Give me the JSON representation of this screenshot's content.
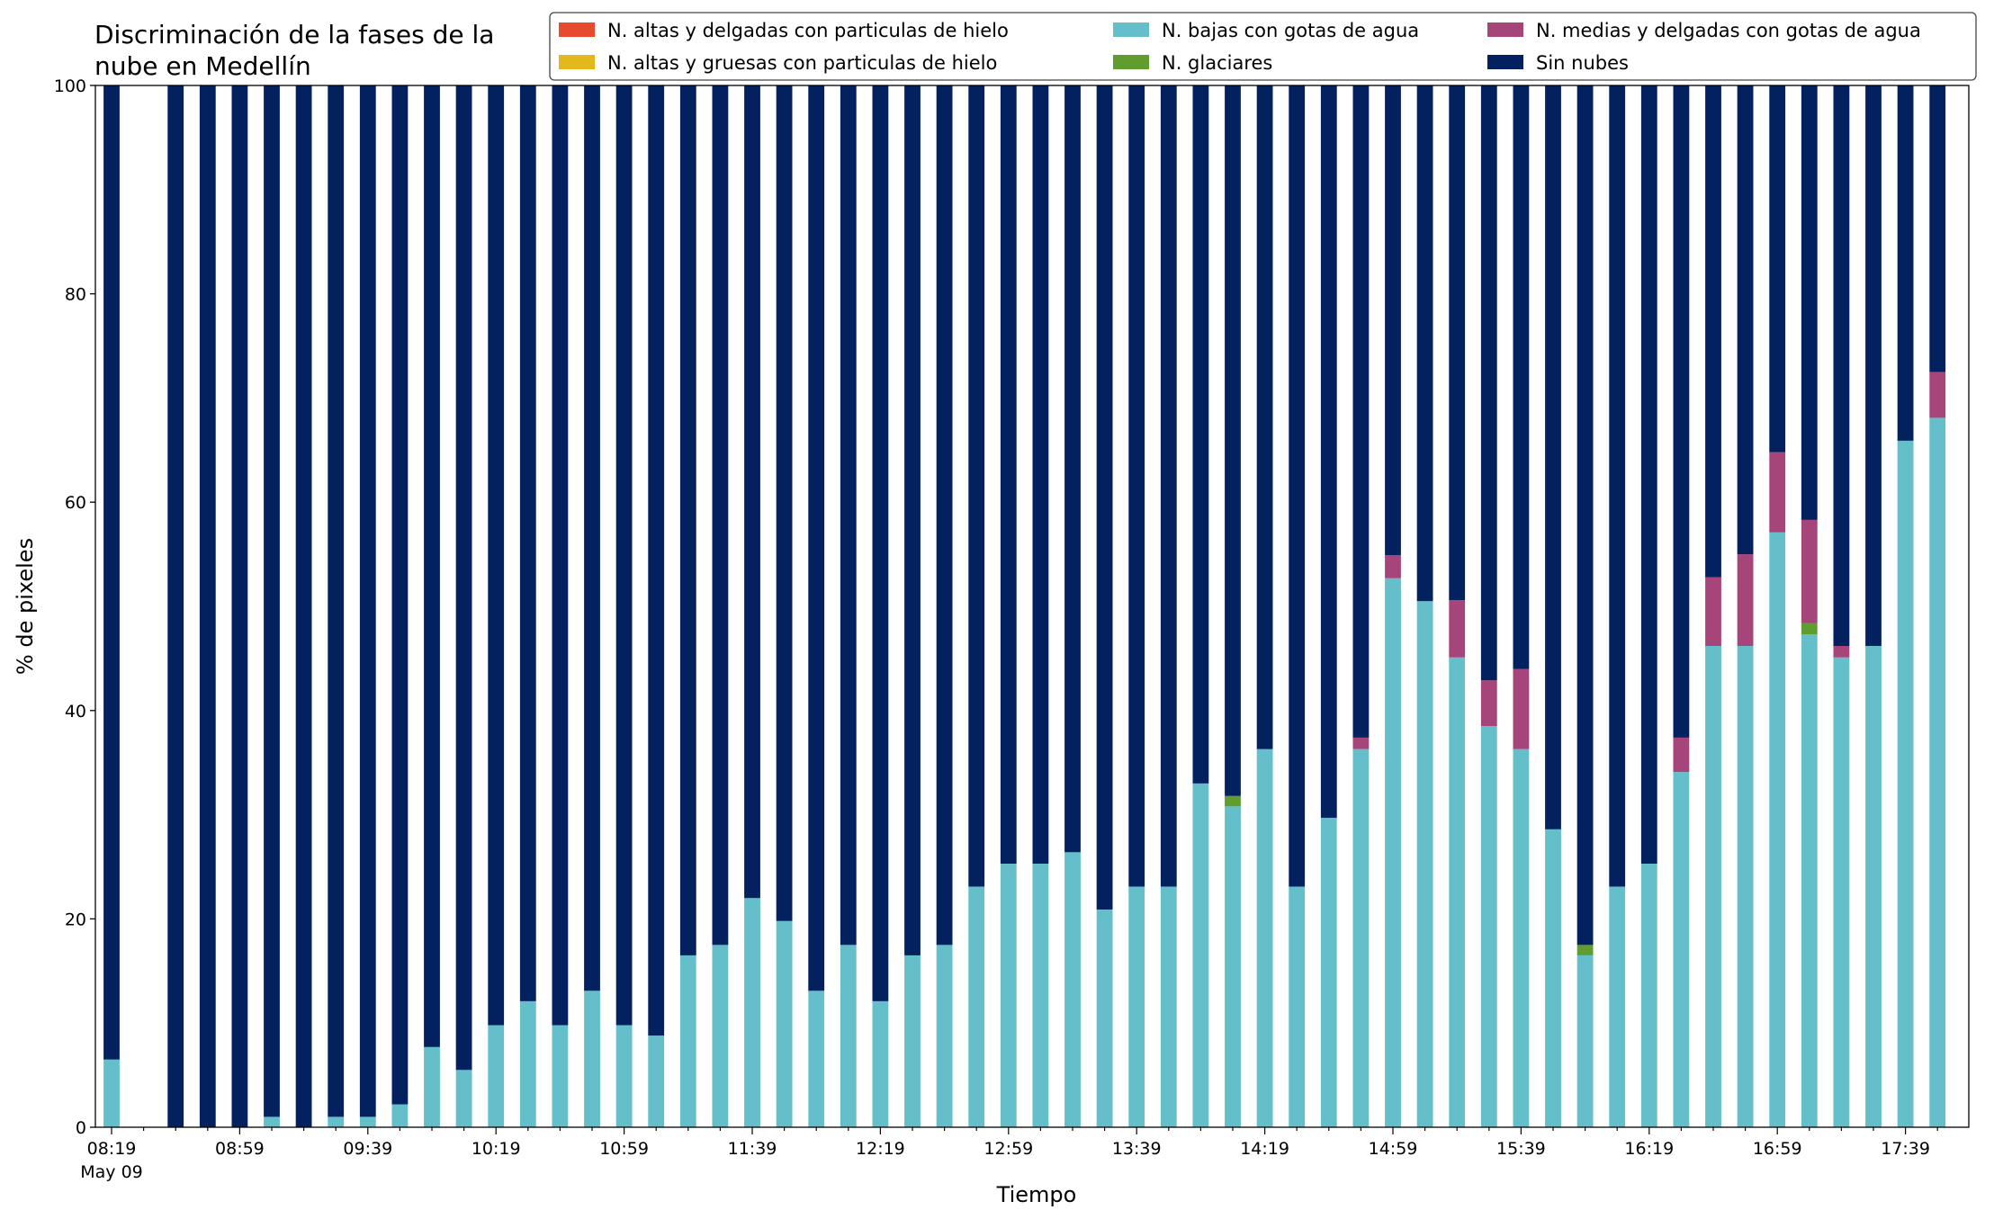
{
  "chart_data": {
    "type": "bar",
    "stacked": true,
    "title_lines": [
      "Discriminación de la fases de la",
      "nube en Medellín"
    ],
    "xlabel": "Tiempo",
    "ylabel": "% de pixeles",
    "ylim": [
      0,
      100
    ],
    "yticks": [
      0,
      20,
      40,
      60,
      80,
      100
    ],
    "grid": false,
    "legend_position": "top-right",
    "x_time": {
      "start": "08:19",
      "step_minutes": 10,
      "count": 58
    },
    "xtick_labels": [
      "08:19",
      "08:59",
      "09:39",
      "10:19",
      "10:59",
      "11:39",
      "12:19",
      "12:59",
      "13:39",
      "14:19",
      "14:59",
      "15:39",
      "16:19",
      "16:59",
      "17:39"
    ],
    "xtick_sublabel": "May 09",
    "series": [
      {
        "name": "N. altas y delgadas con particulas de hielo",
        "color": "#e84a2e"
      },
      {
        "name": "N. altas y gruesas con particulas de hielo",
        "color": "#e3b81c"
      },
      {
        "name": "N. bajas con gotas de agua",
        "color": "#64bfca"
      },
      {
        "name": "N. glaciares",
        "color": "#5f9e2e"
      },
      {
        "name": "N. medias y delgadas con gotas de agua",
        "color": "#a64579"
      },
      {
        "name": "Sin nubes",
        "color": "#03205f"
      }
    ],
    "stack_order": [
      "N. bajas con gotas de agua",
      "N. glaciares",
      "N. medias y delgadas con gotas de agua",
      "Sin nubes"
    ],
    "bars": [
      {
        "time": "08:19",
        "bajas": 6.5,
        "glaciares": 0,
        "medias": 0,
        "sin": 93.5
      },
      {
        "time": "08:29",
        "missing": true
      },
      {
        "time": "08:39",
        "bajas": 0,
        "glaciares": 0,
        "medias": 0,
        "sin": 100
      },
      {
        "time": "08:49",
        "bajas": 0,
        "glaciares": 0,
        "medias": 0,
        "sin": 100
      },
      {
        "time": "08:59",
        "bajas": 0,
        "glaciares": 0,
        "medias": 0,
        "sin": 100
      },
      {
        "time": "09:09",
        "bajas": 1,
        "glaciares": 0,
        "medias": 0,
        "sin": 99
      },
      {
        "time": "09:19",
        "bajas": 0,
        "glaciares": 0,
        "medias": 0,
        "sin": 100
      },
      {
        "time": "09:29",
        "bajas": 1,
        "glaciares": 0,
        "medias": 0,
        "sin": 99
      },
      {
        "time": "09:39",
        "bajas": 1,
        "glaciares": 0,
        "medias": 0,
        "sin": 99
      },
      {
        "time": "09:49",
        "bajas": 2.2,
        "glaciares": 0,
        "medias": 0,
        "sin": 97.8
      },
      {
        "time": "09:59",
        "bajas": 7.7,
        "glaciares": 0,
        "medias": 0,
        "sin": 92.3
      },
      {
        "time": "10:09",
        "bajas": 5.5,
        "glaciares": 0,
        "medias": 0,
        "sin": 94.5
      },
      {
        "time": "10:19",
        "bajas": 9.8,
        "glaciares": 0,
        "medias": 0,
        "sin": 90.2
      },
      {
        "time": "10:29",
        "bajas": 12.1,
        "glaciares": 0,
        "medias": 0,
        "sin": 87.9
      },
      {
        "time": "10:39",
        "bajas": 9.8,
        "glaciares": 0,
        "medias": 0,
        "sin": 90.2
      },
      {
        "time": "10:49",
        "bajas": 13.1,
        "glaciares": 0,
        "medias": 0,
        "sin": 86.9
      },
      {
        "time": "10:59",
        "bajas": 9.8,
        "glaciares": 0,
        "medias": 0,
        "sin": 90.2
      },
      {
        "time": "11:09",
        "bajas": 8.8,
        "glaciares": 0,
        "medias": 0,
        "sin": 91.2
      },
      {
        "time": "11:19",
        "bajas": 16.5,
        "glaciares": 0,
        "medias": 0,
        "sin": 83.5
      },
      {
        "time": "11:29",
        "bajas": 17.5,
        "glaciares": 0,
        "medias": 0,
        "sin": 82.5
      },
      {
        "time": "11:39",
        "bajas": 22,
        "glaciares": 0,
        "medias": 0,
        "sin": 78
      },
      {
        "time": "11:49",
        "bajas": 19.8,
        "glaciares": 0,
        "medias": 0,
        "sin": 80.2
      },
      {
        "time": "11:59",
        "bajas": 13.1,
        "glaciares": 0,
        "medias": 0,
        "sin": 86.9
      },
      {
        "time": "12:09",
        "bajas": 17.5,
        "glaciares": 0,
        "medias": 0,
        "sin": 82.5
      },
      {
        "time": "12:19",
        "bajas": 12.1,
        "glaciares": 0,
        "medias": 0,
        "sin": 87.9
      },
      {
        "time": "12:29",
        "bajas": 16.5,
        "glaciares": 0,
        "medias": 0,
        "sin": 83.5
      },
      {
        "time": "12:39",
        "bajas": 17.5,
        "glaciares": 0,
        "medias": 0,
        "sin": 82.5
      },
      {
        "time": "12:49",
        "bajas": 23.1,
        "glaciares": 0,
        "medias": 0,
        "sin": 76.9
      },
      {
        "time": "12:59",
        "bajas": 25.3,
        "glaciares": 0,
        "medias": 0,
        "sin": 74.7
      },
      {
        "time": "13:09",
        "bajas": 25.3,
        "glaciares": 0,
        "medias": 0,
        "sin": 74.7
      },
      {
        "time": "13:19",
        "bajas": 26.4,
        "glaciares": 0,
        "medias": 0,
        "sin": 73.6
      },
      {
        "time": "13:29",
        "bajas": 20.9,
        "glaciares": 0,
        "medias": 0,
        "sin": 79.1
      },
      {
        "time": "13:39",
        "bajas": 23.1,
        "glaciares": 0,
        "medias": 0,
        "sin": 76.9
      },
      {
        "time": "13:49",
        "bajas": 23.1,
        "glaciares": 0,
        "medias": 0,
        "sin": 76.9
      },
      {
        "time": "13:59",
        "bajas": 33,
        "glaciares": 0,
        "medias": 0,
        "sin": 67
      },
      {
        "time": "14:09",
        "bajas": 30.8,
        "glaciares": 1,
        "medias": 0,
        "sin": 68.2
      },
      {
        "time": "14:19",
        "bajas": 36.3,
        "glaciares": 0,
        "medias": 0,
        "sin": 63.7
      },
      {
        "time": "14:29",
        "bajas": 23.1,
        "glaciares": 0,
        "medias": 0,
        "sin": 76.9
      },
      {
        "time": "14:39",
        "bajas": 29.7,
        "glaciares": 0,
        "medias": 0,
        "sin": 70.3
      },
      {
        "time": "14:49",
        "bajas": 36.3,
        "glaciares": 0,
        "medias": 1.1,
        "sin": 62.6
      },
      {
        "time": "14:59",
        "bajas": 52.7,
        "glaciares": 0,
        "medias": 2.2,
        "sin": 45.1
      },
      {
        "time": "15:09",
        "bajas": 50.5,
        "glaciares": 0,
        "medias": 0,
        "sin": 49.5
      },
      {
        "time": "15:19",
        "bajas": 45.1,
        "glaciares": 0,
        "medias": 5.5,
        "sin": 49.4
      },
      {
        "time": "15:29",
        "bajas": 38.5,
        "glaciares": 0,
        "medias": 4.4,
        "sin": 57.1
      },
      {
        "time": "15:39",
        "bajas": 36.3,
        "glaciares": 0,
        "medias": 7.7,
        "sin": 56
      },
      {
        "time": "15:49",
        "bajas": 28.6,
        "glaciares": 0,
        "medias": 0,
        "sin": 71.4
      },
      {
        "time": "15:59",
        "bajas": 16.5,
        "glaciares": 1,
        "medias": 0,
        "sin": 82.5
      },
      {
        "time": "16:09",
        "bajas": 23.1,
        "glaciares": 0,
        "medias": 0,
        "sin": 76.9
      },
      {
        "time": "16:19",
        "bajas": 25.3,
        "glaciares": 0,
        "medias": 0,
        "sin": 74.7
      },
      {
        "time": "16:29",
        "bajas": 34.1,
        "glaciares": 0,
        "medias": 3.3,
        "sin": 62.6
      },
      {
        "time": "16:39",
        "bajas": 46.2,
        "glaciares": 0,
        "medias": 6.6,
        "sin": 47.2
      },
      {
        "time": "16:49",
        "bajas": 46.2,
        "glaciares": 0,
        "medias": 8.8,
        "sin": 45
      },
      {
        "time": "16:59",
        "bajas": 57.1,
        "glaciares": 0,
        "medias": 7.7,
        "sin": 35.2
      },
      {
        "time": "17:09",
        "bajas": 47.3,
        "glaciares": 1.1,
        "medias": 9.9,
        "sin": 41.7
      },
      {
        "time": "17:19",
        "bajas": 45.1,
        "glaciares": 0,
        "medias": 1.1,
        "sin": 53.8
      },
      {
        "time": "17:29",
        "bajas": 46.2,
        "glaciares": 0,
        "medias": 0,
        "sin": 53.8
      },
      {
        "time": "17:39",
        "bajas": 65.9,
        "glaciares": 0,
        "medias": 0,
        "sin": 34.1
      },
      {
        "time": "17:49",
        "bajas": 68.1,
        "glaciares": 0,
        "medias": 4.4,
        "sin": 27.5
      }
    ]
  }
}
